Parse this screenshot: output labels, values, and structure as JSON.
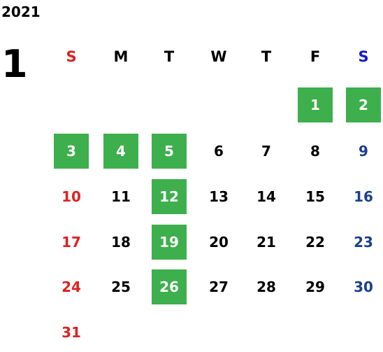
{
  "calendar": {
    "year": "2021",
    "month": "1",
    "weekdays": [
      "S",
      "M",
      "T",
      "W",
      "T",
      "F",
      "S"
    ],
    "colors": {
      "sunday": "#e02020",
      "saturday_header": "#1616d8",
      "saturday": "#1b3f93",
      "weekday": "#000000",
      "highlight_bg": "#3daf4c",
      "highlight_text": "#ffffff"
    },
    "days": [
      {
        "day": "1",
        "col": 5,
        "row": 0,
        "highlighted": true
      },
      {
        "day": "2",
        "col": 6,
        "row": 0,
        "highlighted": true
      },
      {
        "day": "3",
        "col": 0,
        "row": 1,
        "highlighted": true
      },
      {
        "day": "4",
        "col": 1,
        "row": 1,
        "highlighted": true
      },
      {
        "day": "5",
        "col": 2,
        "row": 1,
        "highlighted": true
      },
      {
        "day": "6",
        "col": 3,
        "row": 1,
        "highlighted": false
      },
      {
        "day": "7",
        "col": 4,
        "row": 1,
        "highlighted": false
      },
      {
        "day": "8",
        "col": 5,
        "row": 1,
        "highlighted": false
      },
      {
        "day": "9",
        "col": 6,
        "row": 1,
        "highlighted": false
      },
      {
        "day": "10",
        "col": 0,
        "row": 2,
        "highlighted": false
      },
      {
        "day": "11",
        "col": 1,
        "row": 2,
        "highlighted": false
      },
      {
        "day": "12",
        "col": 2,
        "row": 2,
        "highlighted": true
      },
      {
        "day": "13",
        "col": 3,
        "row": 2,
        "highlighted": false
      },
      {
        "day": "14",
        "col": 4,
        "row": 2,
        "highlighted": false
      },
      {
        "day": "15",
        "col": 5,
        "row": 2,
        "highlighted": false
      },
      {
        "day": "16",
        "col": 6,
        "row": 2,
        "highlighted": false
      },
      {
        "day": "17",
        "col": 0,
        "row": 3,
        "highlighted": false
      },
      {
        "day": "18",
        "col": 1,
        "row": 3,
        "highlighted": false
      },
      {
        "day": "19",
        "col": 2,
        "row": 3,
        "highlighted": true
      },
      {
        "day": "20",
        "col": 3,
        "row": 3,
        "highlighted": false
      },
      {
        "day": "21",
        "col": 4,
        "row": 3,
        "highlighted": false
      },
      {
        "day": "22",
        "col": 5,
        "row": 3,
        "highlighted": false
      },
      {
        "day": "23",
        "col": 6,
        "row": 3,
        "highlighted": false
      },
      {
        "day": "24",
        "col": 0,
        "row": 4,
        "highlighted": false
      },
      {
        "day": "25",
        "col": 1,
        "row": 4,
        "highlighted": false
      },
      {
        "day": "26",
        "col": 2,
        "row": 4,
        "highlighted": true
      },
      {
        "day": "27",
        "col": 3,
        "row": 4,
        "highlighted": false
      },
      {
        "day": "28",
        "col": 4,
        "row": 4,
        "highlighted": false
      },
      {
        "day": "29",
        "col": 5,
        "row": 4,
        "highlighted": false
      },
      {
        "day": "30",
        "col": 6,
        "row": 4,
        "highlighted": false
      },
      {
        "day": "31",
        "col": 0,
        "row": 5,
        "highlighted": false
      }
    ]
  }
}
